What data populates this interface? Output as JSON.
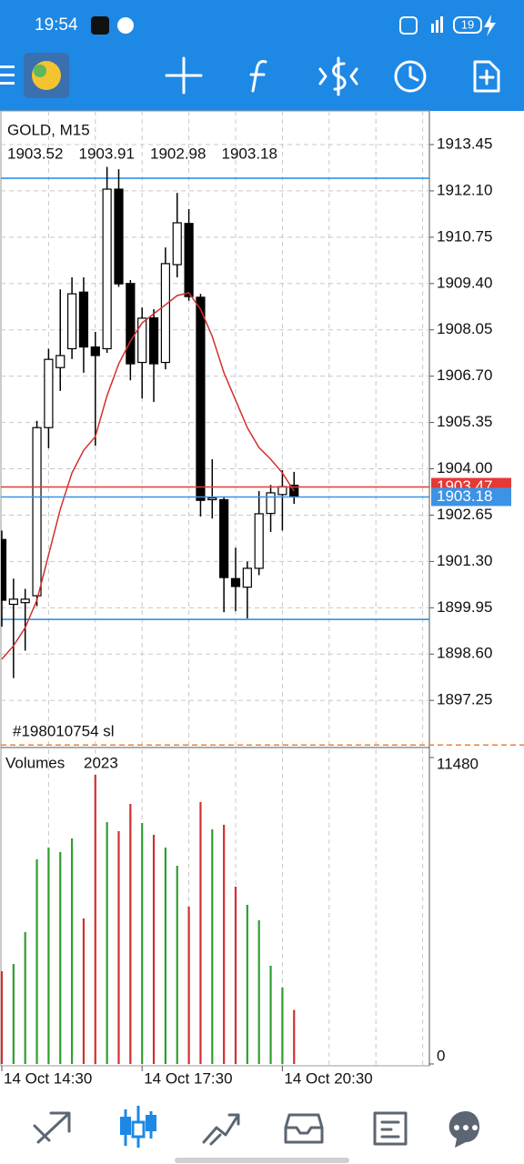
{
  "status_bar": {
    "time": "19:54",
    "battery": "19"
  },
  "chart_data": {
    "type": "candlestick",
    "title": "GOLD, M15",
    "categories": [
      "14 Oct 14:30",
      null,
      null,
      null,
      null,
      null,
      null,
      null,
      null,
      null,
      null,
      null,
      "14 Oct 17:30",
      null,
      null,
      null,
      null,
      null,
      null,
      null,
      null,
      null,
      null,
      null,
      "14 Oct 20:30",
      null
    ],
    "open": [
      1901.94,
      1900.05,
      1900.1,
      1900.3,
      1905.2,
      1906.95,
      1907.5,
      1909.15,
      1907.55,
      1907.5,
      1912.15,
      1909.4,
      1907.1,
      1908.4,
      1907.1,
      1909.95,
      1911.15,
      1909.0,
      1903.1,
      1903.1,
      1900.8,
      1900.55,
      1901.1,
      1902.7,
      1903.25,
      1903.52
    ],
    "high": [
      1902.2,
      1900.8,
      1900.5,
      1905.4,
      1907.5,
      1909.23,
      1909.58,
      1909.58,
      1907.99,
      1912.8,
      1912.73,
      1909.5,
      1908.7,
      1908.65,
      1910.45,
      1912.04,
      1911.57,
      1909.1,
      1904.28,
      1903.2,
      1901.7,
      1901.3,
      1903.35,
      1903.53,
      1903.96,
      1903.91
    ],
    "low": [
      1899.4,
      1897.9,
      1898.7,
      1900.0,
      1904.6,
      1906.27,
      1907.2,
      1906.8,
      1904.67,
      1907.38,
      1909.3,
      1906.58,
      1906.05,
      1905.95,
      1906.9,
      1909.58,
      1908.9,
      1902.61,
      1902.55,
      1899.82,
      1899.85,
      1899.64,
      1900.9,
      1902.16,
      1902.2,
      1902.98
    ],
    "close": [
      1900.17,
      1900.2,
      1900.2,
      1905.2,
      1907.19,
      1907.3,
      1909.1,
      1907.55,
      1907.3,
      1912.15,
      1909.39,
      1907.06,
      1908.39,
      1907.06,
      1909.98,
      1911.17,
      1909.02,
      1903.08,
      1903.15,
      1900.83,
      1900.57,
      1901.1,
      1902.69,
      1903.3,
      1903.48,
      1903.18
    ],
    "up_color": "#ffffff",
    "down_color": "#000000",
    "ma": {
      "color": "#d32f2f",
      "values": [
        1898.45,
        1898.84,
        1899.37,
        1900.17,
        1901.49,
        1902.82,
        1903.88,
        1904.54,
        1904.94,
        1906.13,
        1907.06,
        1907.72,
        1908.25,
        1908.52,
        1908.78,
        1909.05,
        1909.13,
        1908.65,
        1907.86,
        1906.8,
        1906.0,
        1905.2,
        1904.62,
        1904.28,
        1903.88,
        1903.35
      ]
    },
    "ylim": [
      1895.93,
      1914.43
    ],
    "yticks": [
      1913.45,
      {
        "value": 1912.1,
        "label": "1912.10"
      },
      1910.75,
      {
        "value": 1909.4,
        "label": "1909.40"
      },
      1908.05,
      {
        "value": 1906.7,
        "label": "1906.70"
      },
      1905.35,
      {
        "value": 1904,
        "label": "1904.00"
      },
      1902.65,
      {
        "value": 1901.3,
        "label": "1901.30"
      },
      1899.95,
      {
        "value": 1898.6,
        "label": "1898.60"
      },
      1897.25
    ],
    "grid": true,
    "levels": [
      {
        "value": 1912.47,
        "color": "#1e88e5"
      },
      {
        "value": 1899.61,
        "color": "#1e88e5"
      }
    ],
    "ask": {
      "value": 1903.47,
      "color": "#e53935"
    },
    "bid_color": "#3c93e6",
    "stop_loss": {
      "label": "#198010754 sl",
      "value": 1895.95,
      "color": "#e8813a"
    },
    "volume": {
      "title": "Volumes",
      "values": [
        3475,
        3747,
        4940,
        7665,
        8108,
        7937,
        8449,
        5450,
        10833,
        9061,
        8721,
        9743,
        9027,
        8585,
        8108,
        7426,
        5893,
        9811,
        8789,
        8959,
        6643,
        5961,
        5382,
        3679,
        2861,
        2023
      ],
      "up_color": "#2e9e2e",
      "down_color": "#d32f2f",
      "ylim": [
        0,
        11480
      ],
      "yticks": [
        0,
        11480
      ]
    }
  }
}
